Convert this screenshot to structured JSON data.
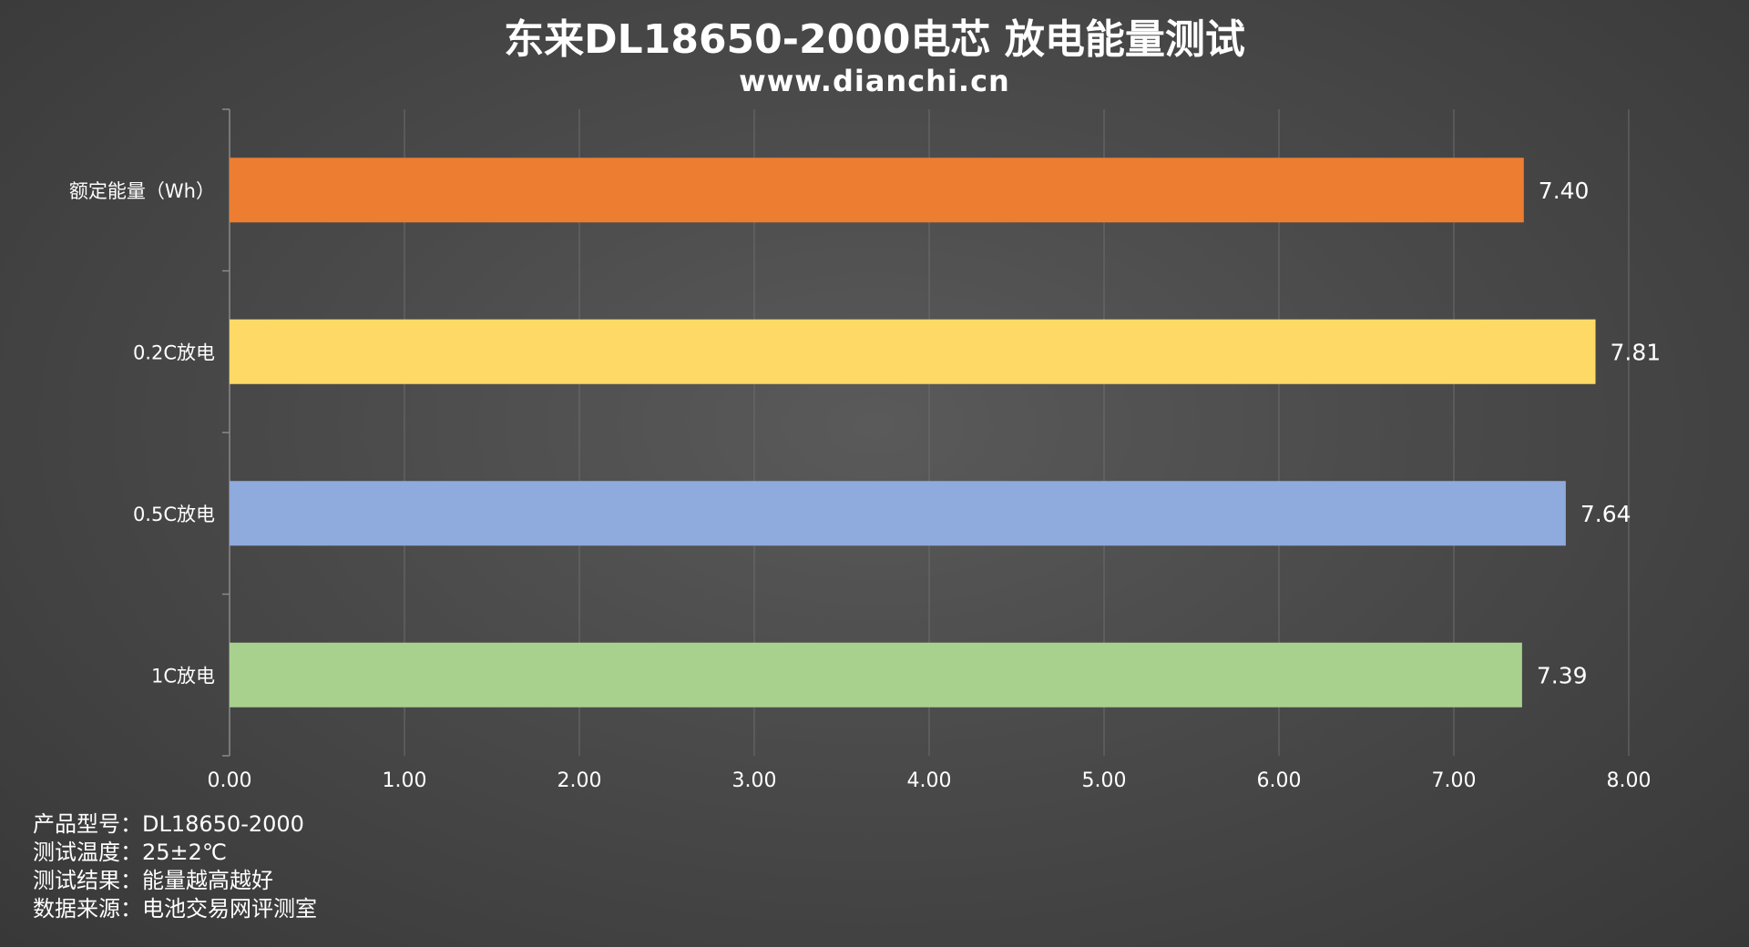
{
  "chart_data": {
    "type": "bar",
    "orientation": "horizontal",
    "title": "东来DL18650-2000电芯 放电能量测试",
    "subtitle": "www.dianchi.cn",
    "categories": [
      "额定能量（Wh）",
      "0.2C放电",
      "0.5C放电",
      "1C放电"
    ],
    "values": [
      7.4,
      7.81,
      7.64,
      7.39
    ],
    "value_labels": [
      "7.40",
      "7.81",
      "7.64",
      "7.39"
    ],
    "bar_colors": [
      "#ED7D31",
      "#FFD966",
      "#8FAADC",
      "#A9D18E"
    ],
    "xlim": [
      0,
      8
    ],
    "x_ticks": [
      "0.00",
      "1.00",
      "2.00",
      "3.00",
      "4.00",
      "5.00",
      "6.00",
      "7.00",
      "8.00"
    ],
    "grid": true,
    "legend": "none"
  },
  "notes": [
    {
      "label": "产品型号：",
      "value": "DL18650-2000"
    },
    {
      "label": "测试温度：",
      "value": "25±2℃"
    },
    {
      "label": "测试结果：",
      "value": "能量越高越好"
    },
    {
      "label": "数据来源：",
      "value": "电池交易网评测室"
    }
  ]
}
